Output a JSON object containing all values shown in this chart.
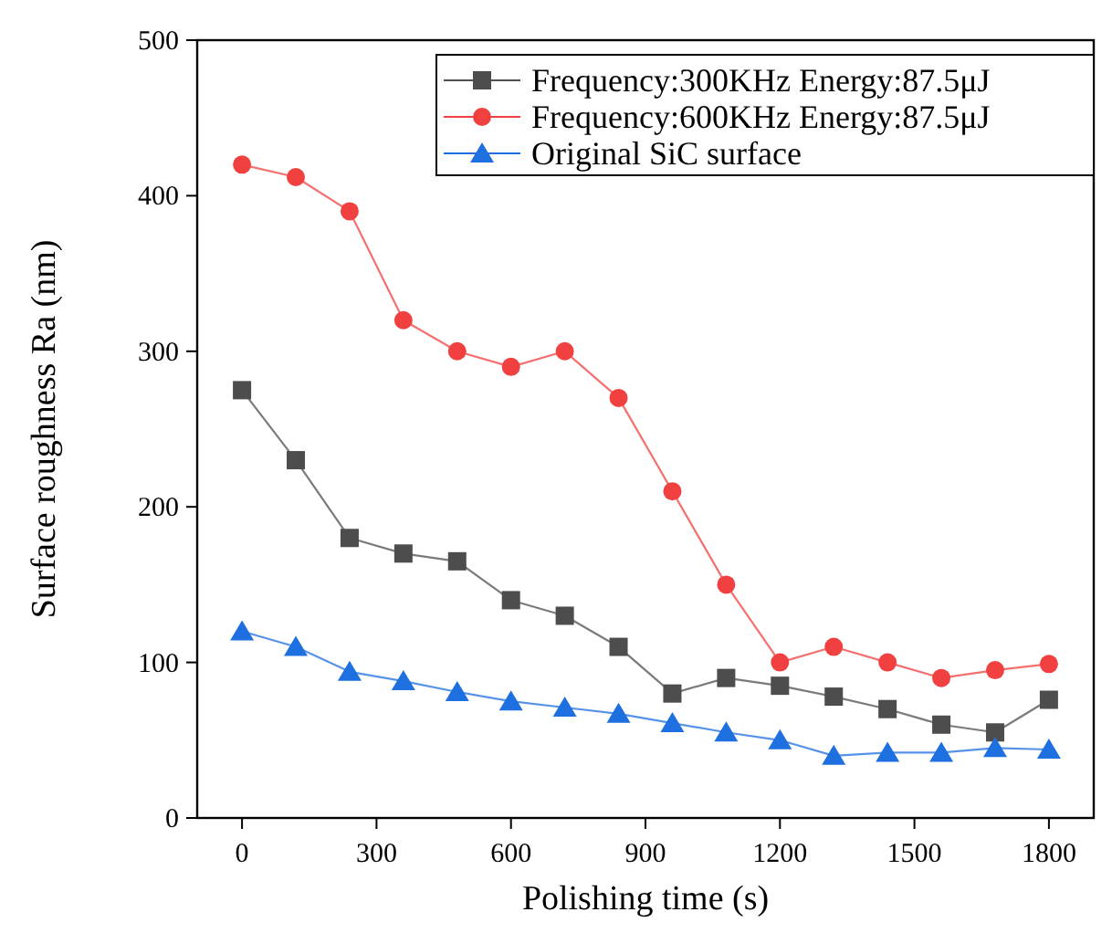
{
  "chart_data": {
    "type": "line",
    "xlabel": "Polishing time (s)",
    "ylabel": "Surface roughness Ra (nm)",
    "x": [
      0,
      120,
      240,
      360,
      480,
      600,
      720,
      840,
      960,
      1080,
      1200,
      1320,
      1440,
      1560,
      1680,
      1800
    ],
    "xlim": [
      -100,
      1900
    ],
    "xticks": [
      0,
      300,
      600,
      900,
      1200,
      1500,
      1800
    ],
    "ylim": [
      0,
      500
    ],
    "yticks": [
      0,
      100,
      200,
      300,
      400,
      500
    ],
    "legend": "top right",
    "grid": false,
    "series": [
      {
        "name": "Frequency:300KHz Energy:87.5μJ",
        "color": "#4d4d4d",
        "marker": "square",
        "values": [
          275,
          230,
          180,
          170,
          165,
          140,
          130,
          110,
          80,
          90,
          85,
          78,
          70,
          60,
          55,
          76
        ]
      },
      {
        "name": "Frequency:600KHz Energy:87.5μJ",
        "color": "#f04040",
        "marker": "circle",
        "values": [
          420,
          412,
          390,
          320,
          300,
          290,
          300,
          270,
          210,
          150,
          100,
          110,
          100,
          90,
          95,
          99
        ]
      },
      {
        "name": "Original SiC surface",
        "color": "#1e6fe0",
        "marker": "triangle",
        "values": [
          120,
          110,
          94,
          88,
          81,
          75,
          71,
          67,
          61,
          55,
          50,
          40,
          42,
          42,
          45,
          44
        ]
      }
    ]
  }
}
